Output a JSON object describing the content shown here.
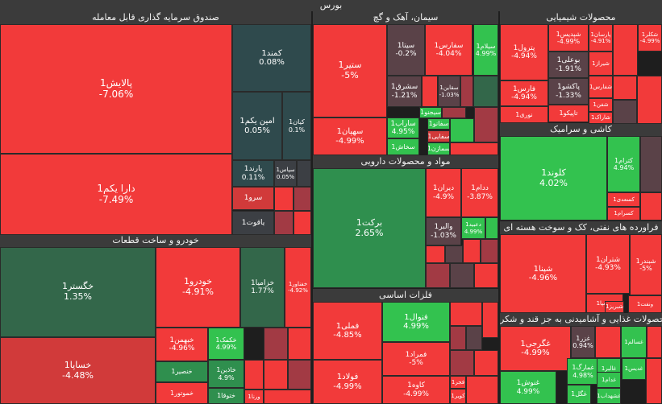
{
  "title": "بورس",
  "colors": {
    "neg_strong": "#f23a3a",
    "neg_mid": "#d13a3a",
    "neg_dark": "#a23a44",
    "neutral": "#3c3f44",
    "neutral_neg": "#5a4248",
    "teal": "#2f4a4d",
    "pos_dark": "#33674a",
    "pos_mid": "#2f8f4e",
    "pos_strong": "#33c24f"
  },
  "chart_data": {
    "type": "treemap",
    "title": "بورس",
    "sectors": [
      {
        "name": "صندوق سرمایه گذاری قابل معامله"
      },
      {
        "name": "سیمان، آهک و گچ"
      },
      {
        "name": "محصولات شیمیایی"
      },
      {
        "name": "کاشی و سرامیک"
      },
      {
        "name": "مواد و محصولات دارویی"
      },
      {
        "name": "فراورده های نفتی، کک و سوخت هسته ای"
      },
      {
        "name": "خودرو و ساخت قطعات"
      },
      {
        "name": "فلزات اساسی"
      },
      {
        "name": "محصولات غذایی و آشامیدنی به جز قند و شکر"
      }
    ],
    "tiles": [
      {
        "name": "پالایش1",
        "change": "-7.06%"
      },
      {
        "name": "دارا یکم1",
        "change": "-7.49%"
      },
      {
        "name": "کمند1",
        "change": "0.08%"
      },
      {
        "name": "امین یکم1",
        "change": "0.05%"
      },
      {
        "name": "کیان1",
        "change": "0.1%"
      },
      {
        "name": "پارند1",
        "change": "0.11%"
      },
      {
        "name": "سپاس1",
        "change": "0.05%"
      },
      {
        "name": "سرو1",
        "change": ""
      },
      {
        "name": "یاقوت1",
        "change": ""
      },
      {
        "name": "ستیر1",
        "change": "-5%"
      },
      {
        "name": "سهپان1",
        "change": "-4.99%"
      },
      {
        "name": "سیتا1",
        "change": "-0.2%"
      },
      {
        "name": "سفارس1",
        "change": "-4.04%"
      },
      {
        "name": "سیلام1",
        "change": "4.99%"
      },
      {
        "name": "سشرق1",
        "change": "-1.21%"
      },
      {
        "name": "سقاین1",
        "change": "-1.03%"
      },
      {
        "name": "سیجنو1",
        "change": ""
      },
      {
        "name": "ساراب1",
        "change": "4.95%"
      },
      {
        "name": "سفانو1",
        "change": ""
      },
      {
        "name": "سفایی1",
        "change": ""
      },
      {
        "name": "سخاش1",
        "change": ""
      },
      {
        "name": "سمازن1",
        "change": ""
      },
      {
        "name": "شپدیس1",
        "change": "-4.99%"
      },
      {
        "name": "پترول1",
        "change": "-4.94%"
      },
      {
        "name": "پارسان1",
        "change": "-4.91%"
      },
      {
        "name": "شکلر1",
        "change": "-4.99%"
      },
      {
        "name": "بوعلی1",
        "change": "-1.91%"
      },
      {
        "name": "شیراز1",
        "change": ""
      },
      {
        "name": "فارس1",
        "change": "-4.94%"
      },
      {
        "name": "پاکشو1",
        "change": "-1.33%"
      },
      {
        "name": "شفارس1",
        "change": ""
      },
      {
        "name": "شفن1",
        "change": ""
      },
      {
        "name": "تاپیکو1",
        "change": ""
      },
      {
        "name": "شاراک1",
        "change": ""
      },
      {
        "name": "نوری1",
        "change": ""
      },
      {
        "name": "کلوند1",
        "change": "4.02%"
      },
      {
        "name": "کترام1",
        "change": "4.94%"
      },
      {
        "name": "کسعدی1",
        "change": ""
      },
      {
        "name": "کسرام1",
        "change": ""
      },
      {
        "name": "برکت1",
        "change": "2.65%"
      },
      {
        "name": "دیران1",
        "change": "-4.9%"
      },
      {
        "name": "ددام1",
        "change": "-3.87%"
      },
      {
        "name": "والبر1",
        "change": "-1.03%"
      },
      {
        "name": "دعبید1",
        "change": "4.99%"
      },
      {
        "name": "شپنا1",
        "change": "-4.96%"
      },
      {
        "name": "شتران1",
        "change": "-4.93%"
      },
      {
        "name": "شبندر1",
        "change": "-5%"
      },
      {
        "name": "ونفت1",
        "change": ""
      },
      {
        "name": "شسپا1",
        "change": ""
      },
      {
        "name": "شبریز1",
        "change": ""
      },
      {
        "name": "خگستر1",
        "change": "1.35%"
      },
      {
        "name": "خساپا1",
        "change": "-4.48%"
      },
      {
        "name": "خودرو1",
        "change": "-4.91%"
      },
      {
        "name": "خزامیا1",
        "change": "1.77%"
      },
      {
        "name": "خفناور1",
        "change": "-4.92%"
      },
      {
        "name": "خبهمن1",
        "change": "-4.96%"
      },
      {
        "name": "خکمک1",
        "change": "4.99%"
      },
      {
        "name": "خنصیر1",
        "change": ""
      },
      {
        "name": "خاذین1",
        "change": "4.9%"
      },
      {
        "name": "خموتور1",
        "change": ""
      },
      {
        "name": "ختوقا1",
        "change": ""
      },
      {
        "name": "ورنا1",
        "change": ""
      },
      {
        "name": "فملی1",
        "change": "-4.85%"
      },
      {
        "name": "فولاد1",
        "change": "-4.99%"
      },
      {
        "name": "فنوال1",
        "change": "4.99%"
      },
      {
        "name": "فمراد1",
        "change": "-5%"
      },
      {
        "name": "کاوه1",
        "change": "-4.99%"
      },
      {
        "name": "فجر1",
        "change": ""
      },
      {
        "name": "کویر1",
        "change": ""
      },
      {
        "name": "غگرجی1",
        "change": "-4.99%"
      },
      {
        "name": "غزر1",
        "change": "0.94%"
      },
      {
        "name": "غمارگ1",
        "change": "4.98%"
      },
      {
        "name": "غسالم1",
        "change": ""
      },
      {
        "name": "غالبر1",
        "change": ""
      },
      {
        "name": "غدام1",
        "change": ""
      },
      {
        "name": "غنوش1",
        "change": "4.99%"
      },
      {
        "name": "غگل1",
        "change": ""
      },
      {
        "name": "غشهداب1",
        "change": ""
      },
      {
        "name": "غدیس1",
        "change": ""
      }
    ]
  }
}
